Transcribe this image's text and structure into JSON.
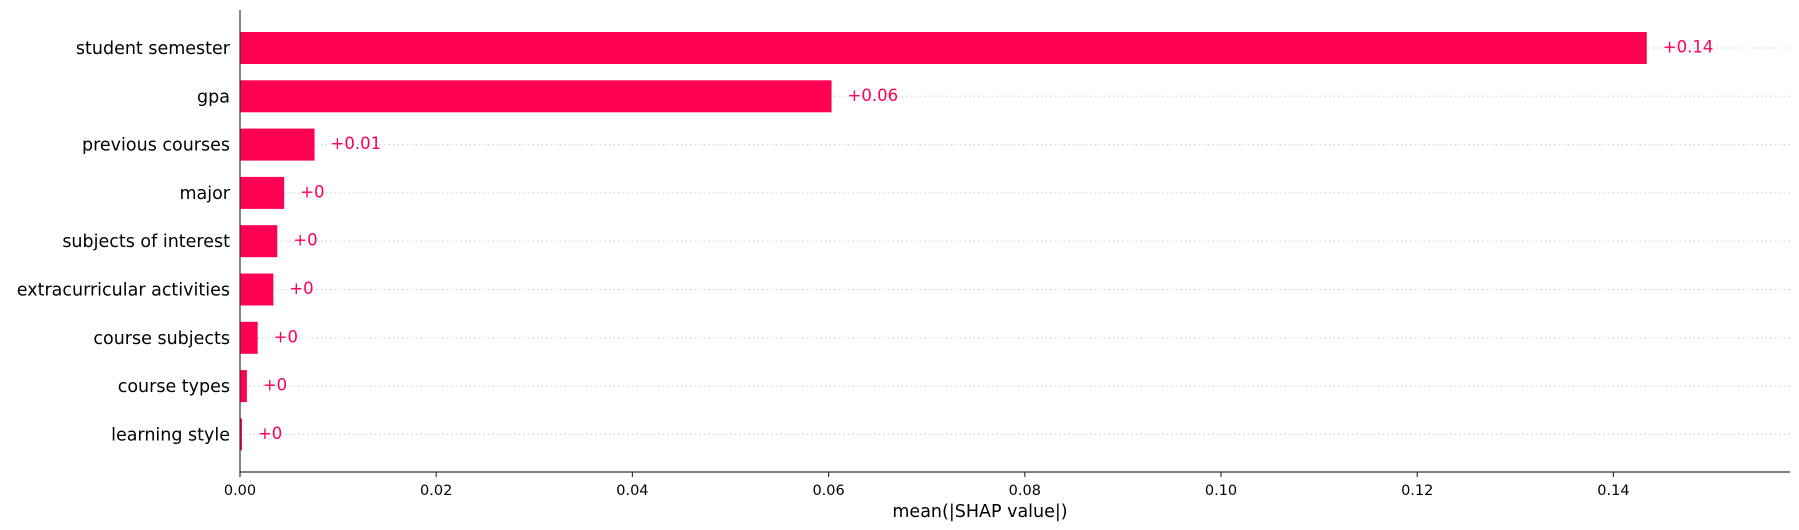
{
  "chart_data": {
    "type": "bar",
    "orientation": "horizontal",
    "categories": [
      "student semester",
      "gpa",
      "previous courses",
      "major",
      "subjects of interest",
      "extracurricular activities",
      "course subjects",
      "course types",
      "learning style"
    ],
    "values": [
      0.1434,
      0.0603,
      0.0076,
      0.0045,
      0.0038,
      0.0034,
      0.0018,
      0.0007,
      0.0002
    ],
    "data_labels": [
      "+0.14",
      "+0.06",
      "+0.01",
      "+0",
      "+0",
      "+0",
      "+0",
      "+0",
      "+0"
    ],
    "xlabel": "mean(|SHAP value|)",
    "ylabel": "",
    "title": "",
    "xlim": [
      0,
      0.158
    ],
    "xticks": [
      0.0,
      0.02,
      0.04,
      0.06,
      0.08,
      0.1,
      0.12,
      0.14
    ],
    "xtick_labels": [
      "0.00",
      "0.02",
      "0.04",
      "0.06",
      "0.08",
      "0.10",
      "0.12",
      "0.14"
    ],
    "grid": "dotted horizontal guide lines per bar",
    "bar_color": "#ff0052",
    "label_color": "#ff0052",
    "guide_color": "#cccccc",
    "axis_color": "#333333"
  }
}
